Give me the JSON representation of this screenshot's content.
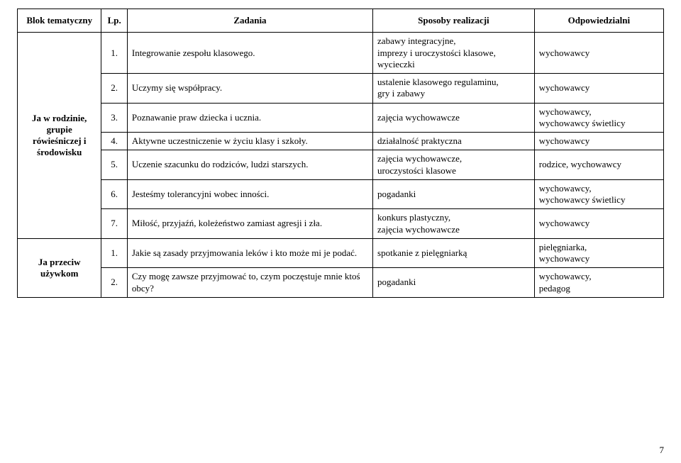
{
  "columns": {
    "block": "Blok tematyczny",
    "lp": "Lp.",
    "task": "Zadania",
    "method": "Sposoby realizacji",
    "resp": "Odpowiedzialni"
  },
  "blocks": [
    {
      "title": "Ja w rodzinie, grupie rówieśniczej i środowisku",
      "rows": [
        {
          "lp": "1.",
          "task": "Integrowanie zespołu klasowego.",
          "method": "zabawy integracyjne,\nimprezy i uroczystości klasowe,\nwycieczki",
          "resp": "wychowawcy"
        },
        {
          "lp": "2.",
          "task": "Uczymy się współpracy.",
          "method": "ustalenie klasowego regulaminu,\ngry i zabawy",
          "resp": "wychowawcy"
        },
        {
          "lp": "3.",
          "task": "Poznawanie praw dziecka i ucznia.",
          "method": "zajęcia wychowawcze",
          "resp": "wychowawcy,\nwychowawcy świetlicy"
        },
        {
          "lp": "4.",
          "task": "Aktywne uczestniczenie w życiu klasy i szkoły.",
          "method": "działalność praktyczna",
          "resp": "wychowawcy"
        },
        {
          "lp": "5.",
          "task": "Uczenie szacunku do rodziców, ludzi starszych.",
          "method": "zajęcia wychowawcze,\nuroczystości klasowe",
          "resp": "rodzice, wychowawcy"
        },
        {
          "lp": "6.",
          "task": "Jesteśmy tolerancyjni wobec inności.",
          "method": "pogadanki",
          "resp": "wychowawcy,\nwychowawcy świetlicy"
        },
        {
          "lp": "7.",
          "task": "Miłość, przyjaźń, koleżeństwo zamiast agresji i zła.",
          "method": "konkurs plastyczny,\nzajęcia wychowawcze",
          "resp": "wychowawcy"
        }
      ]
    },
    {
      "title": "Ja przeciw używkom",
      "rows": [
        {
          "lp": "1.",
          "task": "Jakie są zasady przyjmowania leków i kto może mi je podać.",
          "method": "spotkanie z pielęgniarką",
          "resp": "pielęgniarka,\nwychowawcy"
        },
        {
          "lp": "2.",
          "task": "Czy mogę zawsze przyjmować to, czym poczęstuje mnie ktoś obcy?",
          "method": "pogadanki",
          "resp": "wychowawcy,\npedagog"
        }
      ]
    }
  ],
  "pageNumber": "7"
}
